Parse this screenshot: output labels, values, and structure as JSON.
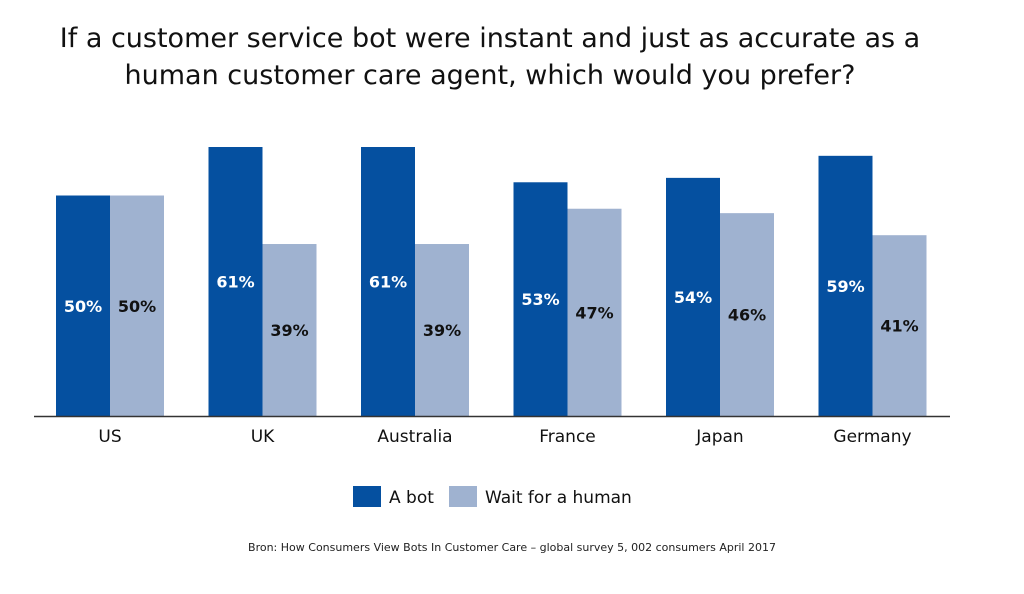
{
  "colors": {
    "bot": "#0550a0",
    "human": "#9fb2d0",
    "bot_label": "#ffffff",
    "human_label": "#111111",
    "axis": "#333333"
  },
  "chart_data": {
    "type": "bar",
    "title": "If a customer service bot were instant and just as accurate as a human customer care agent, which would you prefer?",
    "categories": [
      "US",
      "UK",
      "Australia",
      "France",
      "Japan",
      "Germany"
    ],
    "series": [
      {
        "name": "A bot",
        "values": [
          50,
          61,
          61,
          53,
          54,
          59
        ],
        "labels": [
          "50%",
          "61%",
          "61%",
          "53%",
          "54%",
          "59%"
        ]
      },
      {
        "name": "Wait for a human",
        "values": [
          50,
          39,
          39,
          47,
          46,
          41
        ],
        "labels": [
          "50%",
          "39%",
          "39%",
          "47%",
          "46%",
          "41%"
        ]
      }
    ],
    "ylim": [
      0,
      61
    ],
    "grid": false,
    "legend_position": "bottom-center",
    "source": "Bron: How Consumers View Bots In Customer Care – global survey 5, 002 consumers April 2017"
  }
}
